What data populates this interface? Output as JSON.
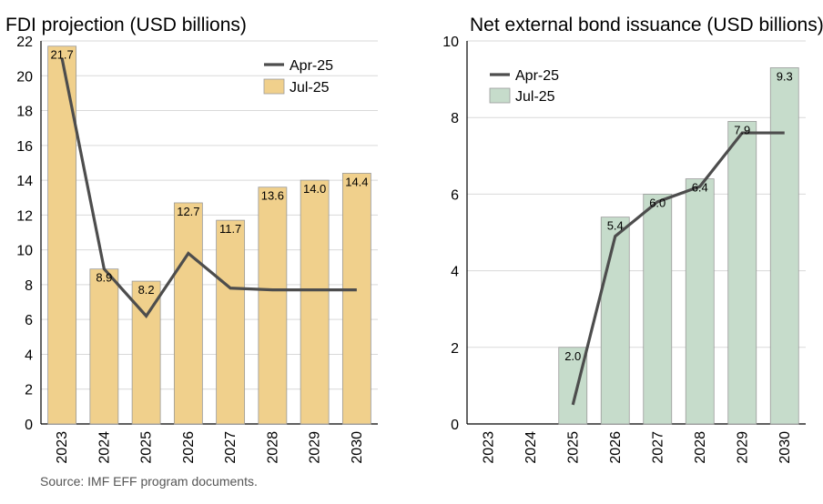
{
  "chart_data": [
    {
      "type": "bar",
      "title": "FDI projection (USD billions)",
      "categories": [
        "2023",
        "2024",
        "2025",
        "2026",
        "2027",
        "2028",
        "2029",
        "2030"
      ],
      "series": [
        {
          "name": "Jul-25",
          "kind": "bar",
          "color": "#f0d08c",
          "values": [
            21.7,
            8.9,
            8.2,
            12.7,
            11.7,
            13.6,
            14.0,
            14.4
          ],
          "labels": [
            "21.7",
            "8.9",
            "8.2",
            "12.7",
            "11.7",
            "13.6",
            "14.0",
            "14.4"
          ]
        },
        {
          "name": "Apr-25",
          "kind": "line",
          "color": "#4d4d4d",
          "values": [
            21.0,
            8.9,
            6.2,
            9.8,
            7.8,
            7.7,
            7.7,
            7.7
          ]
        }
      ],
      "ylim": [
        0,
        22
      ],
      "yticks": [
        "0",
        "2",
        "4",
        "6",
        "8",
        "10",
        "12",
        "14",
        "16",
        "18",
        "20",
        "22"
      ],
      "legend_position": "top-right",
      "grid": true
    },
    {
      "type": "bar",
      "title": "Net external bond issuance (USD billions)",
      "categories": [
        "2023",
        "2024",
        "2025",
        "2026",
        "2027",
        "2028",
        "2029",
        "2030"
      ],
      "series": [
        {
          "name": "Jul-25",
          "kind": "bar",
          "color": "#c6dccb",
          "values": [
            null,
            null,
            2.0,
            5.4,
            6.0,
            6.4,
            7.9,
            9.3
          ],
          "labels": [
            "",
            "",
            "2.0",
            "5.4",
            "6.0",
            "6.4",
            "7.9",
            "9.3"
          ]
        },
        {
          "name": "Apr-25",
          "kind": "line",
          "color": "#4d4d4d",
          "values": [
            null,
            null,
            0.5,
            4.9,
            5.8,
            6.2,
            7.6,
            7.6
          ]
        }
      ],
      "ylim": [
        0,
        10
      ],
      "yticks": [
        "0",
        "2",
        "4",
        "6",
        "8",
        "10"
      ],
      "legend_position": "top-left",
      "grid": true
    }
  ],
  "source": "Source: IMF EFF program documents."
}
